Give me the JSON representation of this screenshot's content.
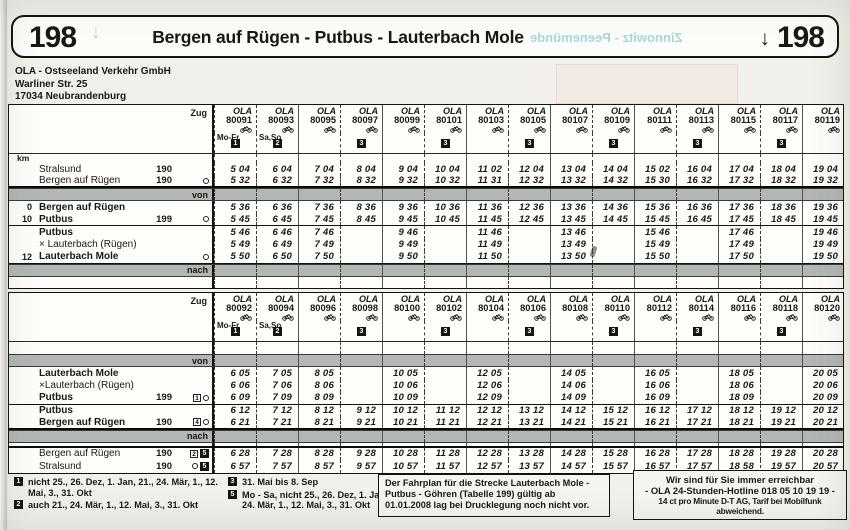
{
  "page": {
    "route_number": "198",
    "arrow": "↓",
    "route_number_right": "198",
    "title": "Bergen auf Rügen - Putbus - Lauterbach Mole",
    "operator_address": [
      "OLA - Ostseeland Verkehr GmbH",
      "Warliner Str. 25",
      "17034 Neubrandenburg"
    ],
    "ghost_text": "Zinnowitz - Peenemünde"
  },
  "labels": {
    "zug": "Zug",
    "km": "km"
  },
  "colors": {
    "ink": "#1a1814",
    "paper": "#f1f0ea",
    "table_bg": "#fdfdfa",
    "band_gray": "#b3b7b3",
    "bleed_cyan": "#2f9fa8"
  },
  "tables": [
    {
      "direction": "Bergen auf Rügen → Lauterbach Mole",
      "columns": [
        {
          "operator": "OLA",
          "number": "80091",
          "bike": true,
          "days": "Mo-Fr",
          "footnote": "1",
          "wavy": true
        },
        {
          "operator": "OLA",
          "number": "80093",
          "bike": true,
          "days": "Sa,So",
          "footnote": "2",
          "wavy": true
        },
        {
          "operator": "OLA",
          "number": "80095",
          "bike": true
        },
        {
          "operator": "OLA",
          "number": "80097",
          "bike": true,
          "footnote": "3",
          "wavy": true
        },
        {
          "operator": "OLA",
          "number": "80099",
          "bike": true
        },
        {
          "operator": "OLA",
          "number": "80101",
          "bike": true,
          "footnote": "3",
          "wavy": true
        },
        {
          "operator": "OLA",
          "number": "80103",
          "bike": true
        },
        {
          "operator": "OLA",
          "number": "80105",
          "bike": true,
          "footnote": "3",
          "wavy": true
        },
        {
          "operator": "OLA",
          "number": "80107",
          "bike": true
        },
        {
          "operator": "OLA",
          "number": "80109",
          "bike": true,
          "footnote": "3",
          "wavy": true
        },
        {
          "operator": "OLA",
          "number": "80111",
          "bike": true
        },
        {
          "operator": "OLA",
          "number": "80113",
          "bike": true,
          "footnote": "3",
          "wavy": true
        },
        {
          "operator": "OLA",
          "number": "80115",
          "bike": true
        },
        {
          "operator": "OLA",
          "number": "80117",
          "bike": true,
          "footnote": "3",
          "wavy": true
        },
        {
          "operator": "OLA",
          "number": "80119",
          "bike": true
        }
      ],
      "rows": [
        {
          "type": "kmhdr"
        },
        {
          "type": "feeder",
          "name": "Stralsund",
          "route": "190",
          "notes": [],
          "times": [
            "5 04",
            "6 04",
            "7 04",
            "8 04",
            "9 04",
            "10 04",
            "11 02",
            "12 04",
            "13 04",
            "14 04",
            "15 02",
            "16 04",
            "17 04",
            "18 04",
            "19 04"
          ]
        },
        {
          "type": "feeder",
          "name": "Bergen auf Rügen",
          "route": "190",
          "notes": [
            {
              "k": "circle"
            }
          ],
          "border": "thick",
          "times": [
            "5 32",
            "6 32",
            "7 32",
            "8 32",
            "9 32",
            "10 32",
            "11 31",
            "12 32",
            "13 32",
            "14 32",
            "15 30",
            "16 32",
            "17 32",
            "18 32",
            "19 32"
          ]
        },
        {
          "type": "band",
          "label": "von"
        },
        {
          "type": "station",
          "km": "0",
          "name": "Bergen auf Rügen",
          "bold": true,
          "times": [
            "5 36",
            "6 36",
            "7 36",
            "8 36",
            "9 36",
            "10 36",
            "11 36",
            "12 36",
            "13 36",
            "14 36",
            "15 36",
            "16 36",
            "17 36",
            "18 36",
            "19 36"
          ]
        },
        {
          "type": "station",
          "km": "10",
          "name": "Putbus",
          "bold": true,
          "route": "199",
          "notes": [
            {
              "k": "circle"
            }
          ],
          "border": "thin",
          "times": [
            "5 45",
            "6 45",
            "7 45",
            "8 45",
            "9 45",
            "10 45",
            "11 45",
            "12 45",
            "13 45",
            "14 45",
            "15 45",
            "16 45",
            "17 45",
            "18 45",
            "19 45"
          ]
        },
        {
          "type": "station",
          "name": "Putbus",
          "bold": true,
          "times": [
            "5 46",
            "6 46",
            "7 46",
            "",
            "9 46",
            "",
            "11 46",
            "",
            "13 46",
            "",
            "15 46",
            "",
            "17 46",
            "",
            "19 46"
          ]
        },
        {
          "type": "station",
          "name": "× Lauterbach (Rügen)",
          "times": [
            "5 49",
            "6 49",
            "7 49",
            "",
            "9 49",
            "",
            "11 49",
            "",
            "13 49",
            "",
            "15 49",
            "",
            "17 49",
            "",
            "19 49"
          ]
        },
        {
          "type": "station",
          "km": "12",
          "name": "Lauterbach Mole",
          "bold": true,
          "notes": [
            {
              "k": "circle"
            }
          ],
          "border": "thin",
          "times": [
            "5 50",
            "6 50",
            "7 50",
            "",
            "9 50",
            "",
            "11 50",
            "",
            "13 50",
            "",
            "15 50",
            "",
            "17 50",
            "",
            "19 50"
          ]
        },
        {
          "type": "band",
          "label": "nach"
        },
        {
          "type": "spacer"
        }
      ]
    },
    {
      "direction": "Lauterbach Mole → Bergen auf Rügen",
      "columns": [
        {
          "operator": "OLA",
          "number": "80092",
          "bike": true,
          "days": "Mo-Fr",
          "footnote": "1",
          "wavy": true
        },
        {
          "operator": "OLA",
          "number": "80094",
          "bike": true,
          "days": "Sa,So",
          "footnote": "2",
          "wavy": true
        },
        {
          "operator": "OLA",
          "number": "80096",
          "bike": true
        },
        {
          "operator": "OLA",
          "number": "80098",
          "bike": true,
          "footnote": "3",
          "wavy": true
        },
        {
          "operator": "OLA",
          "number": "80100",
          "bike": true
        },
        {
          "operator": "OLA",
          "number": "80102",
          "bike": true,
          "footnote": "3",
          "wavy": true
        },
        {
          "operator": "OLA",
          "number": "80104",
          "bike": true
        },
        {
          "operator": "OLA",
          "number": "80106",
          "bike": true,
          "footnote": "3",
          "wavy": true
        },
        {
          "operator": "OLA",
          "number": "80108",
          "bike": true
        },
        {
          "operator": "OLA",
          "number": "80110",
          "bike": true,
          "footnote": "3",
          "wavy": true
        },
        {
          "operator": "OLA",
          "number": "80112",
          "bike": true
        },
        {
          "operator": "OLA",
          "number": "80114",
          "bike": true,
          "footnote": "3",
          "wavy": true
        },
        {
          "operator": "OLA",
          "number": "80116",
          "bike": true
        },
        {
          "operator": "OLA",
          "number": "80118",
          "bike": true,
          "footnote": "3",
          "wavy": true
        },
        {
          "operator": "OLA",
          "number": "80120",
          "bike": true
        }
      ],
      "rows": [
        {
          "type": "spacer2"
        },
        {
          "type": "band",
          "label": "von"
        },
        {
          "type": "station",
          "name": "Lauterbach Mole",
          "bold": true,
          "times": [
            "6 05",
            "7 05",
            "8 05",
            "",
            "10 05",
            "",
            "12 05",
            "",
            "14 05",
            "",
            "16 05",
            "",
            "18 05",
            "",
            "20 05"
          ]
        },
        {
          "type": "station",
          "name": "×Lauterbach (Rügen)",
          "times": [
            "6 06",
            "7 06",
            "8 06",
            "",
            "10 06",
            "",
            "12 06",
            "",
            "14 06",
            "",
            "16 06",
            "",
            "18 06",
            "",
            "20 06"
          ]
        },
        {
          "type": "station",
          "name": "Putbus",
          "bold": true,
          "route": "199",
          "notes": [
            {
              "k": "wbox",
              "v": "1"
            },
            {
              "k": "circle"
            }
          ],
          "border": "thin",
          "times": [
            "6 09",
            "7 09",
            "8 09",
            "",
            "10 09",
            "",
            "12 09",
            "",
            "14 09",
            "",
            "16 09",
            "",
            "18 09",
            "",
            "20 09"
          ]
        },
        {
          "type": "station",
          "name": "Putbus",
          "bold": true,
          "times": [
            "6 12",
            "7 12",
            "8 12",
            "9 12",
            "10 12",
            "11 12",
            "12 12",
            "13 12",
            "14 12",
            "15 12",
            "16 12",
            "17 12",
            "18 12",
            "19 12",
            "20 12"
          ]
        },
        {
          "type": "station",
          "name": "Bergen auf Rügen",
          "bold": true,
          "route": "190",
          "notes": [
            {
              "k": "wbox",
              "v": "4"
            },
            {
              "k": "circle"
            }
          ],
          "border": "thick",
          "times": [
            "6 21",
            "7 21",
            "8 21",
            "9 21",
            "10 21",
            "11 21",
            "12 21",
            "13 21",
            "14 21",
            "15 21",
            "16 21",
            "17 21",
            "18 21",
            "19 21",
            "20 21"
          ]
        },
        {
          "type": "band",
          "label": "nach"
        },
        {
          "type": "spacer3",
          "border": "thick"
        },
        {
          "type": "feeder",
          "name": "Bergen auf Rügen",
          "route": "190",
          "notes": [
            {
              "k": "wbox",
              "v": "2"
            },
            {
              "k": "bbox",
              "v": "5"
            }
          ],
          "times": [
            "6 28",
            "7 28",
            "8 28",
            "9 28",
            "10 28",
            "11 28",
            "12 28",
            "13 28",
            "14 28",
            "15 28",
            "16 28",
            "17 28",
            "18 28",
            "19 28",
            "20 28"
          ]
        },
        {
          "type": "feeder",
          "name": "Stralsund",
          "route": "190",
          "notes": [
            {
              "k": "circle"
            },
            {
              "k": "bbox",
              "v": "5"
            }
          ],
          "times": [
            "6 57",
            "7 57",
            "8 57",
            "9 57",
            "10 57",
            "11 57",
            "12 57",
            "13 57",
            "14 57",
            "15 57",
            "16 57",
            "17 57",
            "18 58",
            "19 57",
            "20 57"
          ]
        }
      ]
    }
  ],
  "footnotes": [
    {
      "marker": "1",
      "text": "nicht 25., 26. Dez, 1. Jan, 21., 24. Mär, 1., 12. Mai, 3., 31. Okt"
    },
    {
      "marker": "2",
      "text": "auch 21., 24. Mär, 1., 12. Mai, 3., 31. Okt"
    },
    {
      "marker": "3",
      "text": "31. Mai bis 8. Sep"
    },
    {
      "marker": "5",
      "text": "Mo - Sa, nicht 25., 26. Dez, 1. Jan, 21., 24. Mär, 1., 12. Mai, 3., 31. Okt"
    }
  ],
  "notice_box": {
    "text": "Der Fahrplan für die Strecke Lauterbach Mole - Putbus - Göhren (Tabelle 199) gültig ab 01.01.2008 lag bei Drucklegung noch nicht vor."
  },
  "hotline_box": [
    "Wir sind für Sie immer erreichbar",
    "- OLA 24-Stunden-Hotline 018 05 10 19 19 -",
    "14 ct pro Minute D-T AG, Tarif bei Mobilfunk abweichend."
  ]
}
